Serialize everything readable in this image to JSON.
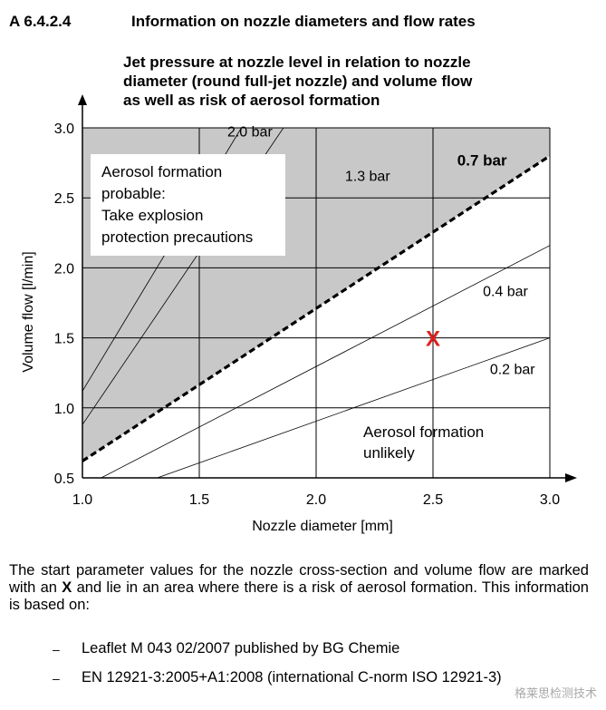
{
  "section": {
    "number": "A 6.4.2.4",
    "title": "Information on nozzle diameters and flow rates"
  },
  "chart_title_lines": [
    "Jet pressure at nozzle level in relation to nozzle",
    "diameter (round full-jet nozzle) and volume flow",
    "as well as risk of aerosol formation"
  ],
  "chart_data": {
    "type": "line",
    "title": "Jet pressure at nozzle level in relation to nozzle diameter (round full-jet nozzle) and volume flow as well as risk of aerosol formation",
    "xlabel": "Nozzle diameter [mm]",
    "ylabel": "Volume flow [l/min]",
    "xlim": [
      1.0,
      3.0
    ],
    "ylim": [
      0.5,
      3.0
    ],
    "x_ticks": [
      "1.0",
      "1.5",
      "2.0",
      "2.5",
      "3.0"
    ],
    "y_ticks": [
      "0.5",
      "1.0",
      "1.5",
      "2.0",
      "2.5",
      "3.0"
    ],
    "grid": true,
    "series": [
      {
        "name": "2.0 bar",
        "style": "thin",
        "x": [
          1.0,
          1.68
        ],
        "y": [
          1.12,
          3.0
        ],
        "label_at": [
          1.62,
          2.94
        ]
      },
      {
        "name": "1.3 bar",
        "style": "thin",
        "x": [
          1.0,
          1.86
        ],
        "y": [
          0.88,
          3.0
        ],
        "label_at": [
          2.22,
          2.62
        ]
      },
      {
        "name": "0.7 bar",
        "style": "thick-dashed",
        "x": [
          1.0,
          3.0
        ],
        "y": [
          0.62,
          2.8
        ],
        "label_at": [
          2.71,
          2.73
        ]
      },
      {
        "name": "0.4 bar",
        "style": "thin",
        "x": [
          1.08,
          3.0
        ],
        "y": [
          0.5,
          2.16
        ],
        "label_at": [
          2.81,
          1.8
        ]
      },
      {
        "name": "0.2 bar",
        "style": "thin",
        "x": [
          1.32,
          3.0
        ],
        "y": [
          0.5,
          1.5
        ],
        "label_at": [
          2.84,
          1.24
        ]
      }
    ],
    "marker": {
      "label": "X",
      "x": 2.5,
      "y": 1.5,
      "color": "#e0201b"
    },
    "regions": [
      {
        "lines": [
          "Aerosol formation",
          "probable:",
          "Take explosion",
          "protection precautions"
        ],
        "fill": "#c8c8c8"
      },
      {
        "lines": [
          "Aerosol formation",
          "unlikely"
        ],
        "fill": "#ffffff"
      }
    ]
  },
  "paragraph": {
    "before": "The start parameter values for the nozzle cross-section and volume flow are marked with an ",
    "bold": "X",
    "after": " and lie in an area where there is a risk of aerosol formation. This information is based on:"
  },
  "references": [
    {
      "dash": "–",
      "text": "Leaflet M 043 02/2007 published by BG Chemie"
    },
    {
      "dash": "–",
      "text": "EN 12921-3:2005+A1:2008 (international C-norm ISO 12921-3)"
    }
  ],
  "watermark": "格莱思检测技术"
}
